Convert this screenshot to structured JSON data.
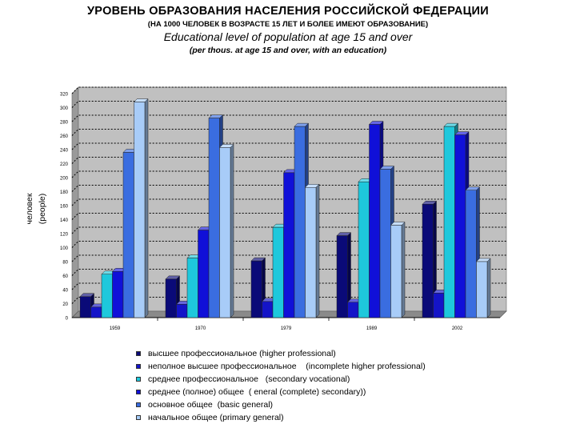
{
  "titles": {
    "ru_main": "УРОВЕНЬ ОБРАЗОВАНИЯ НАСЕЛЕНИЯ РОССИЙСКОЙ ФЕДЕРАЦИИ",
    "ru_sub": "(НА 1000 ЧЕЛОВЕК В ВОЗРАСТЕ 15 ЛЕТ И БОЛЕЕ ИМЕЮТ ОБРАЗОВАНИЕ)",
    "en_main": "Educational level of population at age 15 and over",
    "en_sub": "(per thous.  at age 15 and over, with an education)"
  },
  "chart_data": {
    "type": "bar",
    "title": "Educational level of population at age 15 and over",
    "ylabel_ru": "человек",
    "ylabel_en": "(people)",
    "ylim": [
      0,
      320
    ],
    "yticks": [
      "0",
      "20",
      "40",
      "60",
      "80",
      "100",
      "120",
      "140",
      "160",
      "180",
      "200",
      "220",
      "240",
      "260",
      "280",
      "300",
      "320"
    ],
    "categories": [
      "1959",
      "1970",
      "1979",
      "1989",
      "2002"
    ],
    "grid": true,
    "legend_position": "bottom",
    "series": [
      {
        "name": "высшее профессиональное (higher professional)",
        "color": "#0a0a78",
        "values": [
          30,
          55,
          81,
          117,
          162
        ]
      },
      {
        "name": "неполное высшее профессиональное    (incomplete higher professional)",
        "color": "#1414c8",
        "values": [
          15,
          19,
          23,
          22,
          35
        ]
      },
      {
        "name": "среднее профессиональное   (secondary vocational)",
        "color": "#1ec8dc",
        "values": [
          62,
          85,
          129,
          194,
          273
        ]
      },
      {
        "name": "среднее (полное) общее  ( eneral (complete) secondary))",
        "color": "#1010d8",
        "values": [
          66,
          125,
          207,
          276,
          261
        ]
      },
      {
        "name": "основное общее  (basic general)",
        "color": "#3a6de0",
        "values": [
          236,
          285,
          273,
          212,
          182
        ]
      },
      {
        "name": "начальное общее (primary general)",
        "color": "#a8ccf8",
        "values": [
          308,
          243,
          186,
          132,
          80
        ]
      }
    ]
  }
}
